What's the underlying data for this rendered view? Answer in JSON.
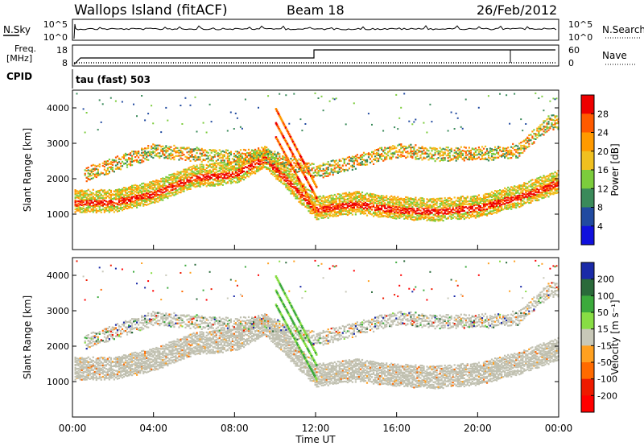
{
  "header": {
    "station": "Wallops Island (fitACF)",
    "beam": "Beam 18",
    "date": "26/Feb/2012"
  },
  "panels": {
    "nsky": {
      "label": "N.Sky",
      "right_label": "N.Search",
      "ticks_left": [
        "10^5",
        "10^0"
      ],
      "ticks_right": [
        "10^5",
        "10^0"
      ]
    },
    "freq": {
      "label_line1": "Freq.",
      "label_line2": "[MHz]",
      "ticks_left": [
        "18",
        "8"
      ],
      "right_label": "Nave",
      "ticks_right": [
        "60",
        "0"
      ]
    },
    "cpid": {
      "label": "CPID",
      "program": "tau (fast) 503"
    }
  },
  "chart_data": [
    {
      "type": "heatmap",
      "name": "power",
      "xlabel": "Time UT",
      "ylabel": "Slant Range [km]",
      "ylim": [
        0,
        4500
      ],
      "xlim": [
        "00:00",
        "24:00"
      ],
      "x_ticks": [
        "00:00",
        "04:00",
        "08:00",
        "12:00",
        "16:00",
        "20:00",
        "00:00"
      ],
      "y_ticks": [
        1000,
        2000,
        3000,
        4000
      ],
      "colorbar": {
        "label": "Power [dB]",
        "ticks": [
          28,
          24,
          20,
          16,
          12,
          8,
          4
        ],
        "colors": [
          "#ee0000",
          "#ff5a00",
          "#ff9a00",
          "#f0c020",
          "#7ccc3c",
          "#3a8a5a",
          "#214aa0",
          "#1010dd"
        ]
      },
      "main_echo_band": {
        "hours": [
          0,
          2,
          4,
          6,
          8,
          9.5,
          12,
          14,
          16,
          18,
          20,
          22,
          24
        ],
        "slant_range_km": [
          1350,
          1350,
          1600,
          2050,
          2150,
          2600,
          1150,
          1300,
          1150,
          1100,
          1200,
          1500,
          1900
        ]
      },
      "upper_echo_band": {
        "hours": [
          0,
          1,
          2.5,
          4,
          6,
          8,
          9.5,
          12,
          14,
          16,
          18,
          20,
          22,
          23.5
        ],
        "slant_range_km": [
          2000,
          2200,
          2500,
          2800,
          2700,
          2600,
          2700,
          2200,
          2500,
          2800,
          2700,
          2700,
          2800,
          3600
        ]
      },
      "descending_streaks": {
        "from_hour": 10,
        "to_hour": 12,
        "from_range_km": [
          4000,
          3600,
          3200
        ],
        "to_range_km": [
          1800,
          1500,
          1100
        ]
      }
    },
    {
      "type": "heatmap",
      "name": "velocity",
      "xlabel": "Time UT",
      "ylabel": "Slant Range [km]",
      "ylim": [
        0,
        4500
      ],
      "xlim": [
        "00:00",
        "24:00"
      ],
      "x_ticks": [
        "00:00",
        "04:00",
        "08:00",
        "12:00",
        "16:00",
        "20:00",
        "00:00"
      ],
      "y_ticks": [
        1000,
        2000,
        3000,
        4000
      ],
      "colorbar": {
        "label": "Velocity [m s⁻¹]",
        "ticks": [
          200,
          100,
          50,
          15,
          -15,
          -50,
          -100,
          -200
        ],
        "colors": [
          "#1a2aa8",
          "#2a6a3a",
          "#3caa3c",
          "#88dd44",
          "#c8c8b8",
          "#ffa020",
          "#ff6a00",
          "#ee1a00",
          "#ff0000"
        ]
      },
      "ground_scatter_color": "#c0c0b0"
    }
  ],
  "footer": {
    "time_label": "Time UT",
    "x_ticks": [
      "00:00",
      "04:00",
      "08:00",
      "12:00",
      "16:00",
      "20:00",
      "00:00"
    ]
  }
}
